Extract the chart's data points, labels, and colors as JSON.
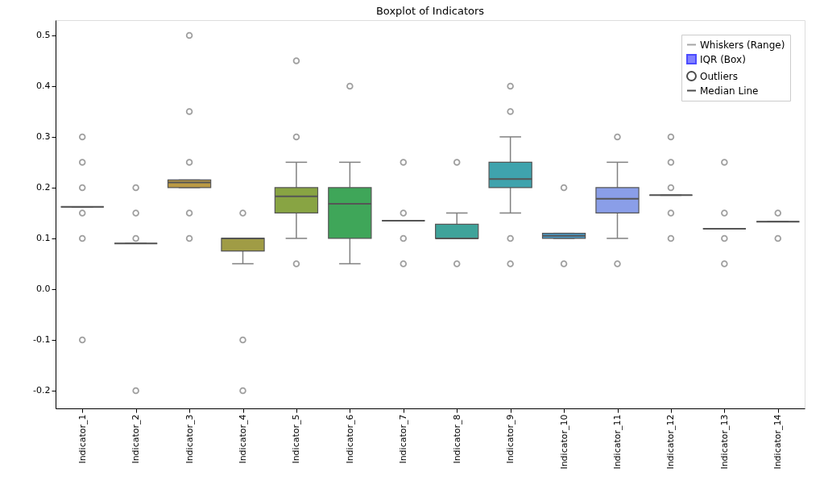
{
  "chart_data": {
    "type": "box",
    "title": "Boxplot of Indicators",
    "categories": [
      "Indicator_1",
      "Indicator_2",
      "Indicator_3",
      "Indicator_4",
      "Indicator_5",
      "Indicator_6",
      "Indicator_7",
      "Indicator_8",
      "Indicator_9",
      "Indicator_10",
      "Indicator_11",
      "Indicator_12",
      "Indicator_13",
      "Indicator_14"
    ],
    "colors": [
      "#555555",
      "#555555",
      "#bb9a45",
      "#a09c45",
      "#88a443",
      "#3fa659",
      "#555555",
      "#3fa39a",
      "#3fa3ad",
      "#4a9ecc",
      "#8a9ee8",
      "#555555",
      "#555555",
      "#555555"
    ],
    "boxes": [
      {
        "low": 0.162,
        "q1": 0.162,
        "median": 0.162,
        "q3": 0.162,
        "high": 0.162,
        "outliers": [
          0.3,
          0.25,
          0.2,
          0.15,
          0.1,
          -0.1
        ]
      },
      {
        "low": 0.09,
        "q1": 0.09,
        "median": 0.09,
        "q3": 0.09,
        "high": 0.09,
        "outliers": [
          0.2,
          0.15,
          0.1,
          -0.2
        ]
      },
      {
        "low": 0.2,
        "q1": 0.2,
        "median": 0.21,
        "q3": 0.215,
        "high": 0.215,
        "outliers": [
          0.5,
          0.35,
          0.25,
          0.15,
          0.1
        ]
      },
      {
        "low": 0.05,
        "q1": 0.075,
        "median": 0.1,
        "q3": 0.1,
        "high": 0.1,
        "outliers": [
          0.15,
          -0.1,
          -0.2
        ]
      },
      {
        "low": 0.1,
        "q1": 0.15,
        "median": 0.183,
        "q3": 0.2,
        "high": 0.25,
        "outliers": [
          0.45,
          0.3,
          0.05
        ]
      },
      {
        "low": 0.05,
        "q1": 0.1,
        "median": 0.168,
        "q3": 0.2,
        "high": 0.25,
        "outliers": [
          0.4
        ]
      },
      {
        "low": 0.135,
        "q1": 0.135,
        "median": 0.135,
        "q3": 0.135,
        "high": 0.135,
        "outliers": [
          0.25,
          0.15,
          0.1,
          0.05
        ]
      },
      {
        "low": 0.1,
        "q1": 0.1,
        "median": 0.1,
        "q3": 0.128,
        "high": 0.15,
        "outliers": [
          0.25,
          0.05
        ]
      },
      {
        "low": 0.15,
        "q1": 0.2,
        "median": 0.217,
        "q3": 0.25,
        "high": 0.3,
        "outliers": [
          0.4,
          0.35,
          0.1,
          0.05
        ]
      },
      {
        "low": 0.1,
        "q1": 0.1,
        "median": 0.105,
        "q3": 0.11,
        "high": 0.11,
        "outliers": [
          0.2,
          0.05
        ]
      },
      {
        "low": 0.1,
        "q1": 0.15,
        "median": 0.178,
        "q3": 0.2,
        "high": 0.25,
        "outliers": [
          0.3,
          0.05
        ]
      },
      {
        "low": 0.185,
        "q1": 0.185,
        "median": 0.185,
        "q3": 0.185,
        "high": 0.185,
        "outliers": [
          0.3,
          0.25,
          0.2,
          0.15,
          0.1
        ]
      },
      {
        "low": 0.119,
        "q1": 0.119,
        "median": 0.119,
        "q3": 0.119,
        "high": 0.119,
        "outliers": [
          0.25,
          0.15,
          0.1,
          0.05
        ]
      },
      {
        "low": 0.133,
        "q1": 0.133,
        "median": 0.133,
        "q3": 0.133,
        "high": 0.133,
        "outliers": [
          0.15,
          0.1
        ]
      }
    ],
    "series": [
      {
        "name": "Whiskers (Range)",
        "color": "#808080",
        "type": "line",
        "marker": "none",
        "values": [
          null,
          null,
          null,
          null,
          null,
          null,
          null,
          null,
          null,
          null,
          null,
          null,
          null,
          null
        ]
      },
      {
        "name": "IQR (Box)",
        "color": "#0000ff",
        "type": "scatter",
        "marker": "square",
        "values": [
          null,
          null,
          null,
          null,
          null,
          null,
          null,
          null,
          null,
          null,
          null,
          null,
          null,
          null
        ]
      },
      {
        "name": "Outliers",
        "color": "#000000",
        "type": "line",
        "marker": "circle",
        "values": [
          null,
          null,
          null,
          null,
          null,
          null,
          null,
          null,
          null,
          null,
          null,
          null,
          null,
          null
        ]
      },
      {
        "name": "Median Line",
        "color": "#000000",
        "type": "line",
        "marker": "none",
        "values": [
          null,
          null,
          null,
          null,
          null,
          null,
          null,
          null,
          null,
          null,
          null,
          null,
          null,
          null
        ]
      }
    ],
    "legend": "top right",
    "ylim": [
      -0.235,
      0.53
    ],
    "yticks": [
      -0.2,
      -0.1,
      {
        "value": 0,
        "label": "0.0"
      },
      0.1,
      0.2,
      0.3,
      0.4,
      0.5
    ],
    "grid": false
  }
}
